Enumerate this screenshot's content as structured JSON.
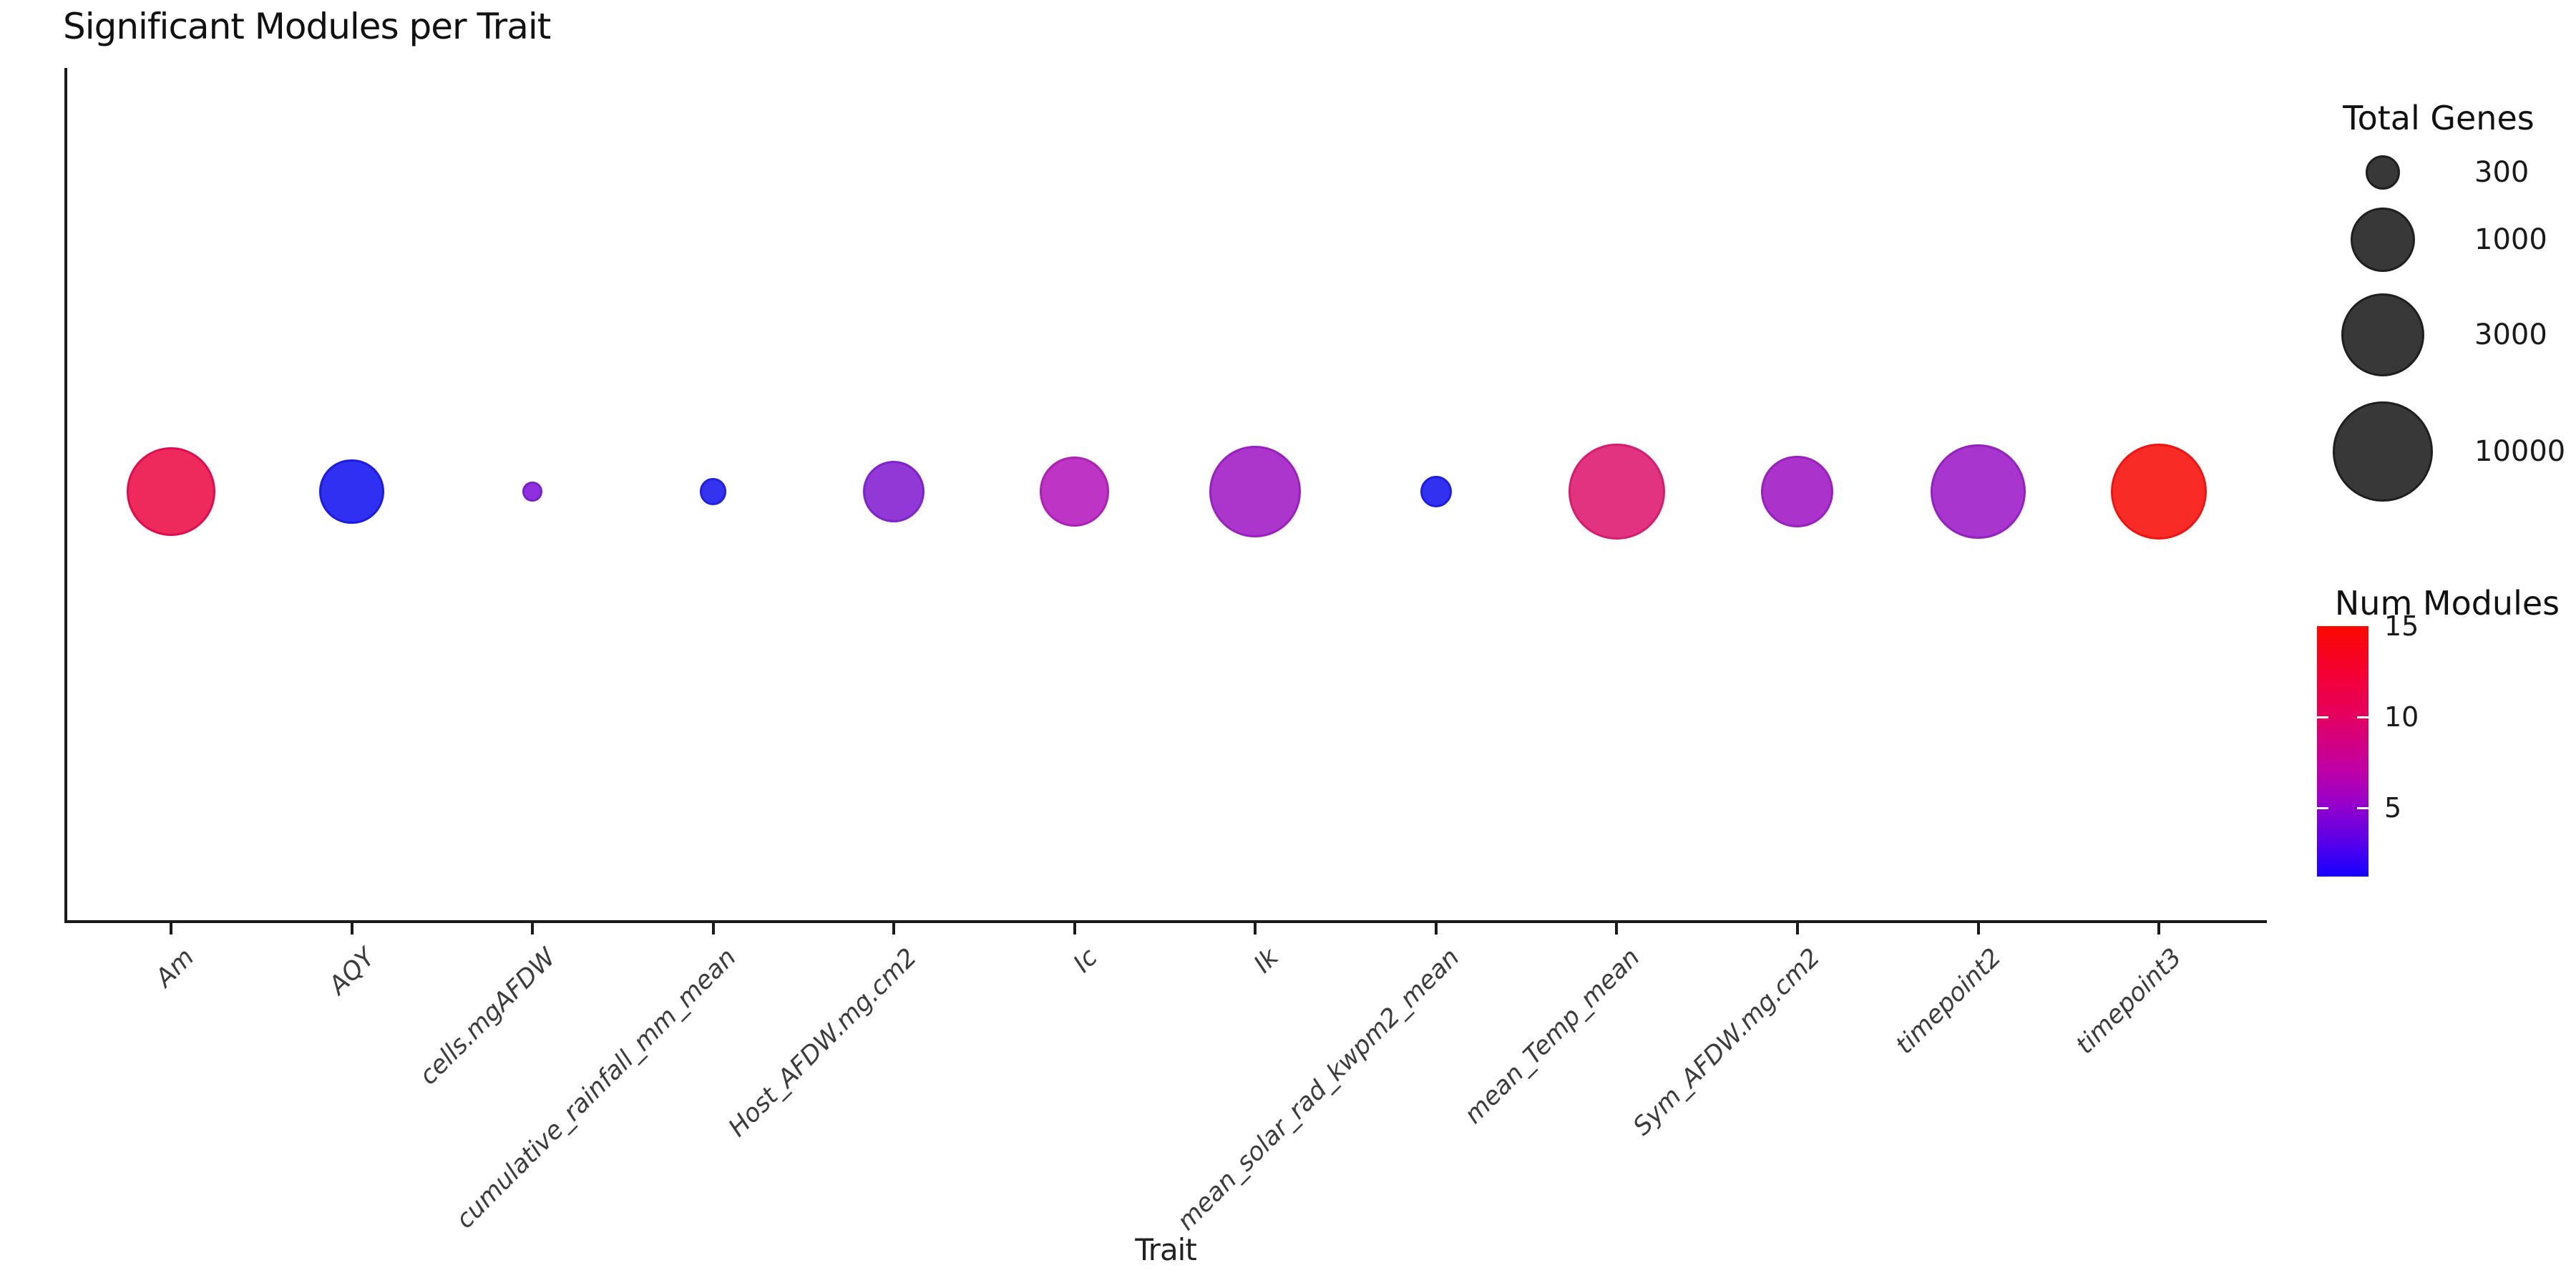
{
  "page": {
    "title": "Significant Modules per Trait"
  },
  "chart_data": {
    "type": "scatter",
    "title": "Significant Modules per Trait",
    "xlabel": "Trait",
    "ylabel": "",
    "grid": false,
    "legend_position": "right",
    "x_categories": [
      "Am",
      "AQY",
      "cells.mgAFDW",
      "cumulative_rainfall_mm_mean",
      "Host_AFDW.mg.cm2",
      "Ic",
      "Ik",
      "mean_solar_rad_kwpm2_mean",
      "mean_Temp_mean",
      "Sym_AFDW.mg.cm2",
      "timepoint2",
      "timepoint3"
    ],
    "points": [
      {
        "trait": "Am",
        "total_genes": 4500,
        "num_modules": 13,
        "fill": "#EE295C",
        "edge": "#E00D4D"
      },
      {
        "trait": "AQY",
        "total_genes": 1000,
        "num_modules": 2,
        "fill": "#3030F2",
        "edge": "#1C1CE0"
      },
      {
        "trait": "cells.mgAFDW",
        "total_genes": 220,
        "num_modules": 4,
        "fill": "#8E30DF",
        "edge": "#7A20C8"
      },
      {
        "trait": "cumulative_rainfall_mm_mean",
        "total_genes": 250,
        "num_modules": 2,
        "fill": "#3333F0",
        "edge": "#2020DE"
      },
      {
        "trait": "Host_AFDW.mg.cm2",
        "total_genes": 850,
        "num_modules": 5,
        "fill": "#9238D6",
        "edge": "#7E25C8"
      },
      {
        "trait": "Ic",
        "total_genes": 1300,
        "num_modules": 7,
        "fill": "#BE35C5",
        "edge": "#AC20B5"
      },
      {
        "trait": "Ik",
        "total_genes": 5200,
        "num_modules": 6,
        "fill": "#AC36CC",
        "edge": "#9920BE"
      },
      {
        "trait": "mean_solar_rad_kwpm2_mean",
        "total_genes": 280,
        "num_modules": 2,
        "fill": "#3231F2",
        "edge": "#1D1CE2"
      },
      {
        "trait": "mean_Temp_mean",
        "total_genes": 7500,
        "num_modules": 11,
        "fill": "#E23380",
        "edge": "#D61C70"
      },
      {
        "trait": "Sym_AFDW.mg.cm2",
        "total_genes": 1500,
        "num_modules": 6,
        "fill": "#AB33CC",
        "edge": "#991FBE"
      },
      {
        "trait": "timepoint2",
        "total_genes": 6800,
        "num_modules": 6,
        "fill": "#A835CD",
        "edge": "#9520C0"
      },
      {
        "trait": "timepoint3",
        "total_genes": 7500,
        "num_modules": 15,
        "fill": "#F92B26",
        "edge": "#EF1410"
      }
    ],
    "size_legend": {
      "title": "Total Genes",
      "entries": [
        300,
        1000,
        3000,
        10000
      ]
    },
    "color_legend": {
      "title": "Num Modules",
      "ticks": [
        15,
        10,
        5
      ],
      "domain": [
        1,
        15
      ],
      "top_color": "#FF0000",
      "bottom_color": "#0000FF"
    }
  }
}
